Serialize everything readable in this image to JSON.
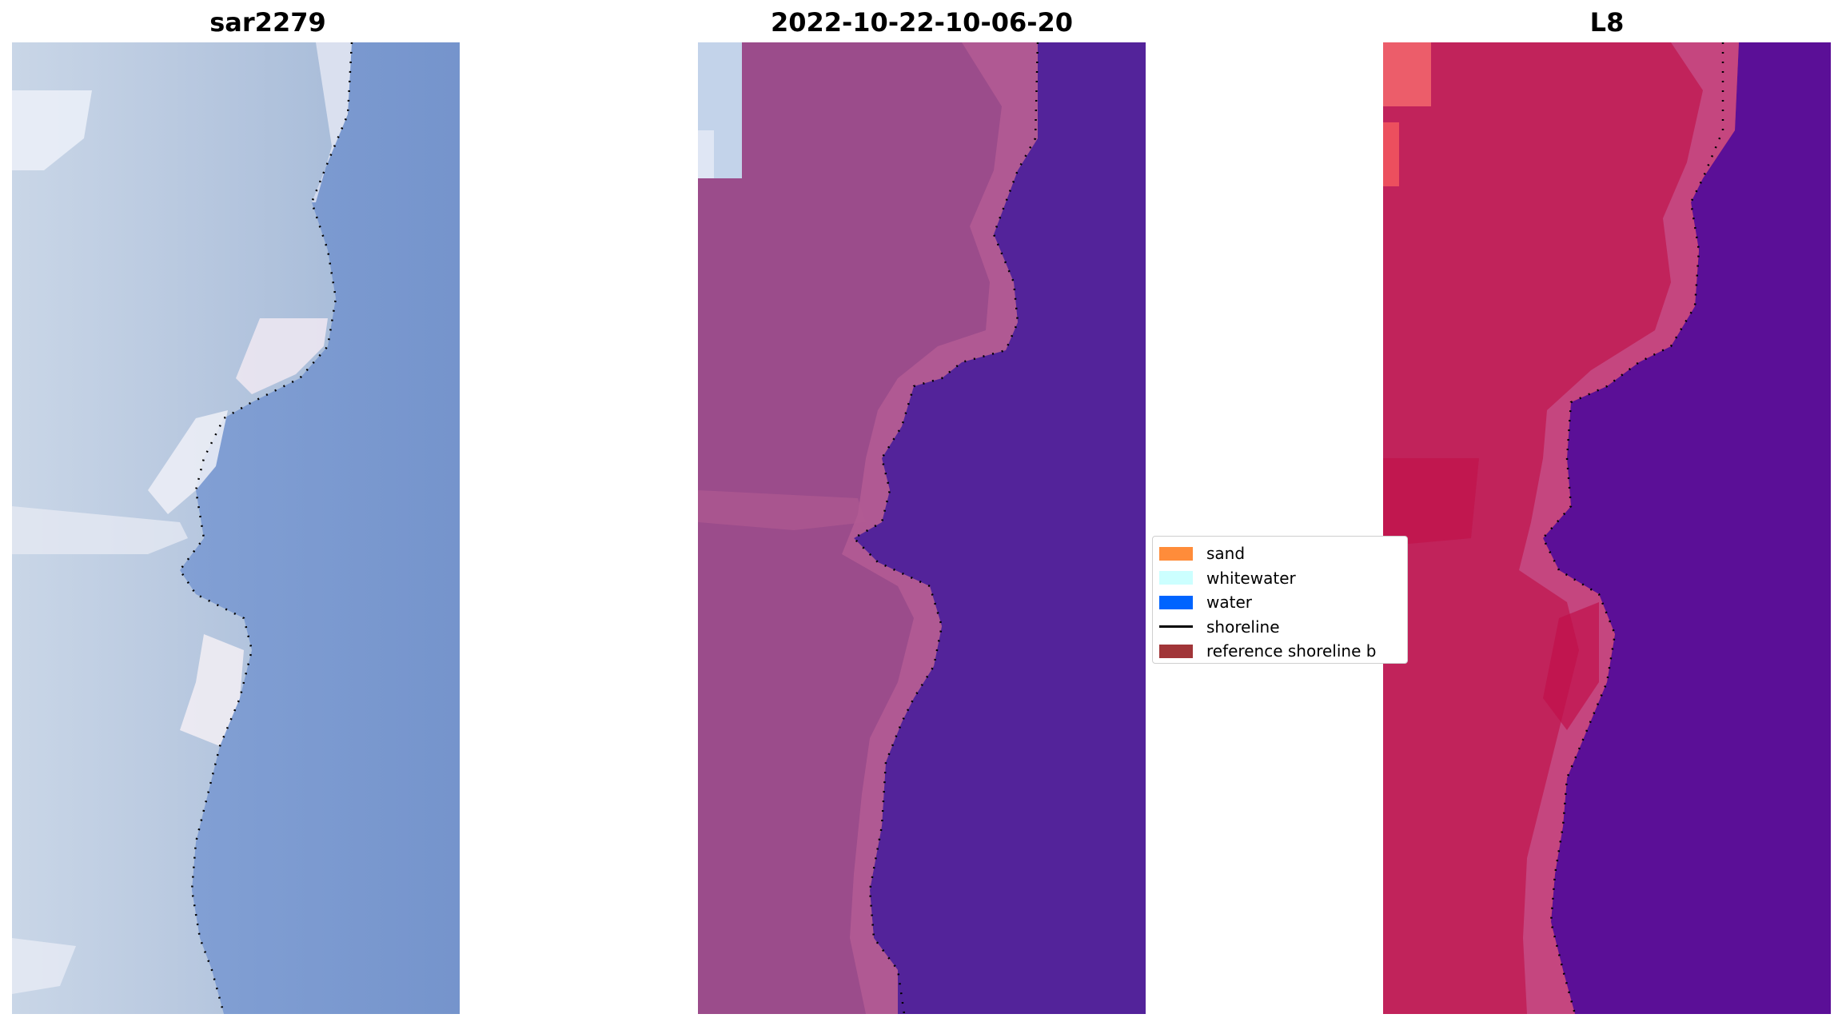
{
  "panels": [
    {
      "id": "rgb",
      "title": "sar2279",
      "colors": {
        "land": "#c7d4e6",
        "land_bright": "#edf0f7",
        "water": "#7f9ccf"
      }
    },
    {
      "id": "classified",
      "title": "2022-10-22-10-06-20",
      "colors": {
        "land": "#9c4f8a",
        "land_edge": "#b35c93",
        "water": "#53239a"
      }
    },
    {
      "id": "mndwi",
      "title": "L8",
      "colors": {
        "land": "#c0225a",
        "land_edge": "#c44f86",
        "water": "#5a0f98"
      }
    }
  ],
  "legend": {
    "items": [
      {
        "label": "sand",
        "color": "#ff8c3a",
        "kind": "patch"
      },
      {
        "label": "whitewater",
        "color": "#ccffff",
        "kind": "patch"
      },
      {
        "label": "water",
        "color": "#0064ff",
        "kind": "patch"
      },
      {
        "label": "shoreline",
        "color": "#000000",
        "kind": "line"
      },
      {
        "label": "reference shoreline b",
        "color": "#a13538",
        "kind": "patch"
      }
    ]
  }
}
